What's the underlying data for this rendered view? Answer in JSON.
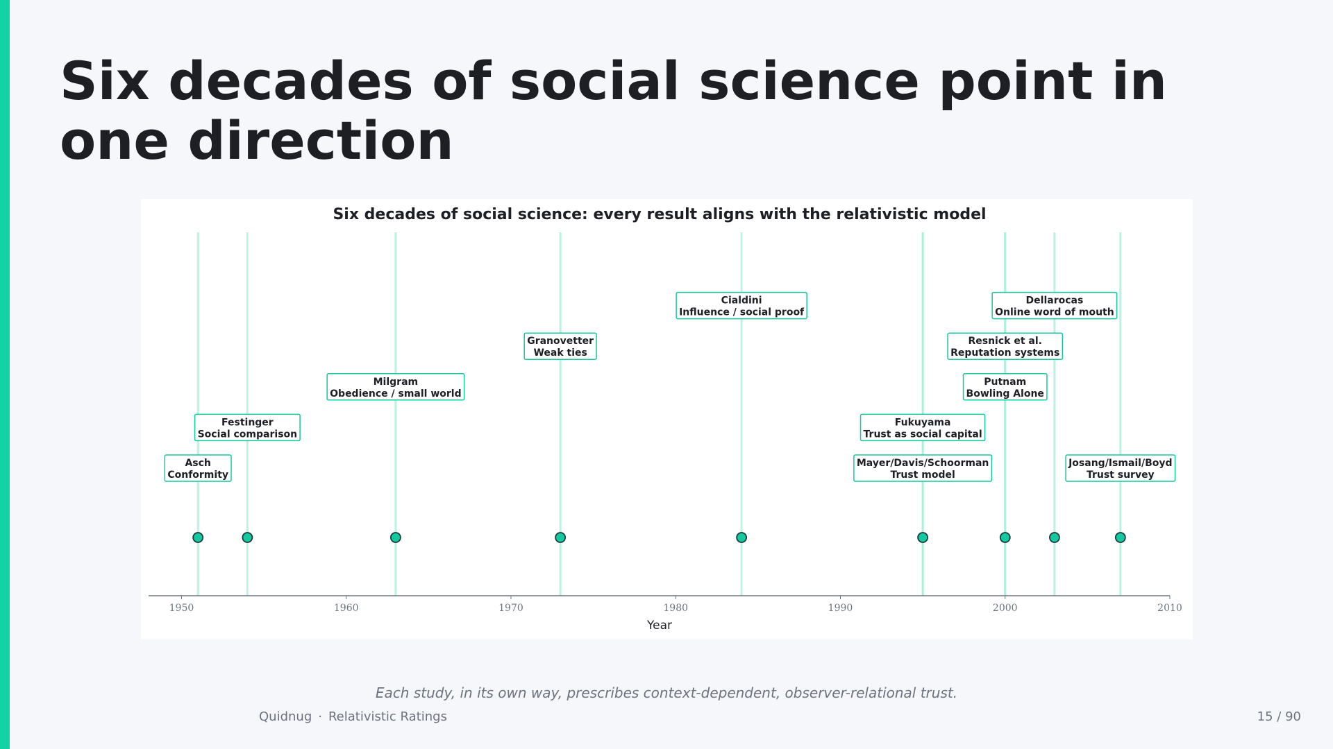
{
  "slide": {
    "title": "Six decades of social science point in one direction",
    "caption": "Each study, in its own way, prescribes context-dependent, observer-relational trust.",
    "footer_brand": "Quidnug",
    "footer_separator": "·",
    "footer_deck": "Relativistic Ratings",
    "page": "15 / 90",
    "accent_color": "#12d3a3"
  },
  "chart_data": {
    "type": "scatter",
    "title": "Six decades of social science: every result aligns with the relativistic model",
    "xlabel": "Year",
    "ylabel": "",
    "xlim": [
      1948,
      2010
    ],
    "x_ticks": [
      1950,
      1960,
      1970,
      1980,
      1990,
      2000,
      2010
    ],
    "grid": false,
    "marker_color": "#12c9a0",
    "line_color": "#a8ecd9",
    "events": [
      {
        "year": 1951,
        "author": "Asch",
        "topic": "Conformity",
        "label_level": 1
      },
      {
        "year": 1954,
        "author": "Festinger",
        "topic": "Social comparison",
        "label_level": 2
      },
      {
        "year": 1963,
        "author": "Milgram",
        "topic": "Obedience / small world",
        "label_level": 3
      },
      {
        "year": 1973,
        "author": "Granovetter",
        "topic": "Weak ties",
        "label_level": 4
      },
      {
        "year": 1984,
        "author": "Cialdini",
        "topic": "Influence / social proof",
        "label_level": 5
      },
      {
        "year": 1995,
        "author": "Mayer/Davis/Schoorman",
        "topic": "Trust model",
        "label_level": 1
      },
      {
        "year": 1995,
        "author": "Fukuyama",
        "topic": "Trust as social capital",
        "label_level": 2
      },
      {
        "year": 2000,
        "author": "Putnam",
        "topic": "Bowling Alone",
        "label_level": 3
      },
      {
        "year": 2000,
        "author": "Resnick et al.",
        "topic": "Reputation systems",
        "label_level": 4
      },
      {
        "year": 2003,
        "author": "Dellarocas",
        "topic": "Online word of mouth",
        "label_level": 5
      },
      {
        "year": 2007,
        "author": "Josang/Ismail/Boyd",
        "topic": "Trust survey",
        "label_level": 1
      }
    ]
  }
}
